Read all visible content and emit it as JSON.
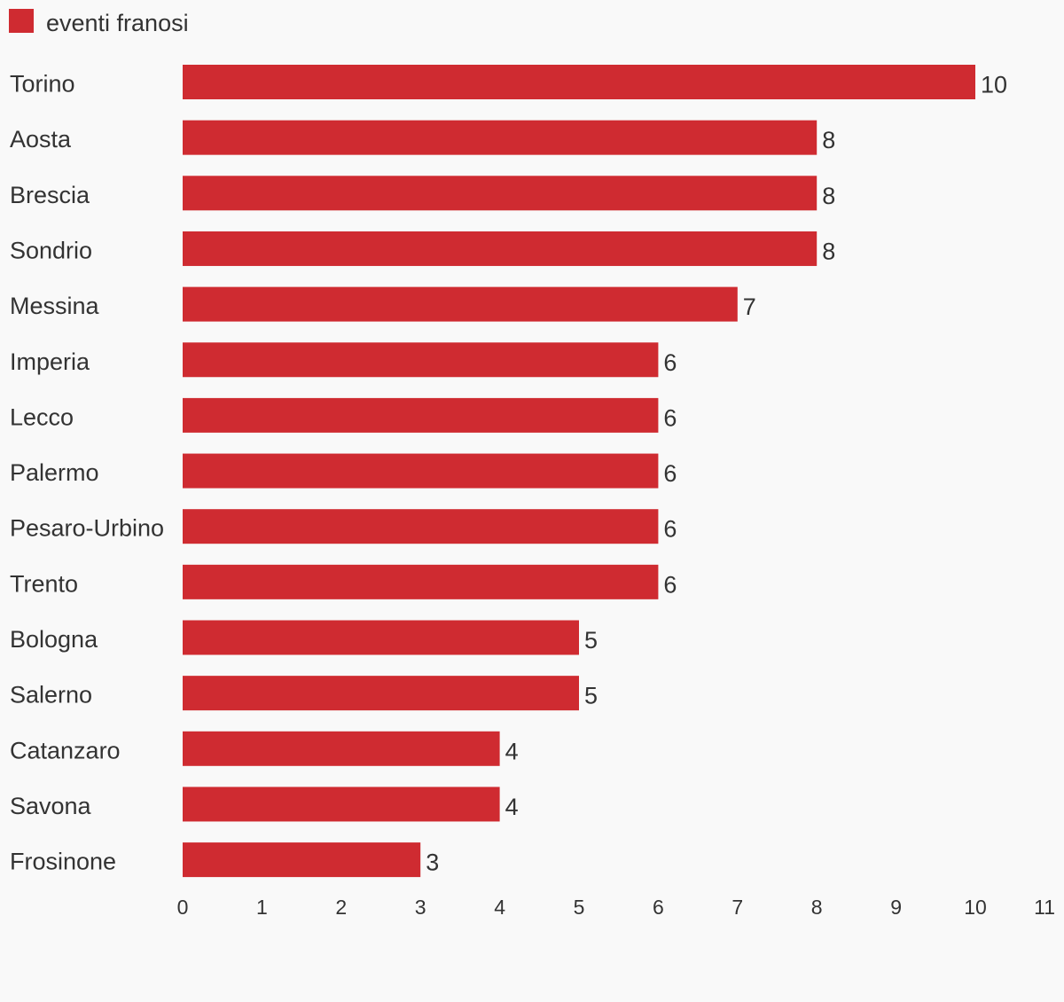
{
  "chart_data": {
    "type": "bar",
    "orientation": "horizontal",
    "categories": [
      "Torino",
      "Aosta",
      "Brescia",
      "Sondrio",
      "Messina",
      "Imperia",
      "Lecco",
      "Palermo",
      "Pesaro-Urbino",
      "Trento",
      "Bologna",
      "Salerno",
      "Catanzaro",
      "Savona",
      "Frosinone"
    ],
    "series": [
      {
        "name": "eventi franosi",
        "color": "#cf2b31",
        "values": [
          10,
          8,
          8,
          8,
          7,
          6,
          6,
          6,
          6,
          6,
          5,
          5,
          4,
          4,
          3
        ]
      }
    ],
    "xlim": [
      0,
      11
    ],
    "x_ticks": [
      0,
      1,
      2,
      3,
      4,
      5,
      6,
      7,
      8,
      9,
      10,
      11
    ],
    "grid": false,
    "legend_position": "top-left",
    "data_labels": true
  }
}
